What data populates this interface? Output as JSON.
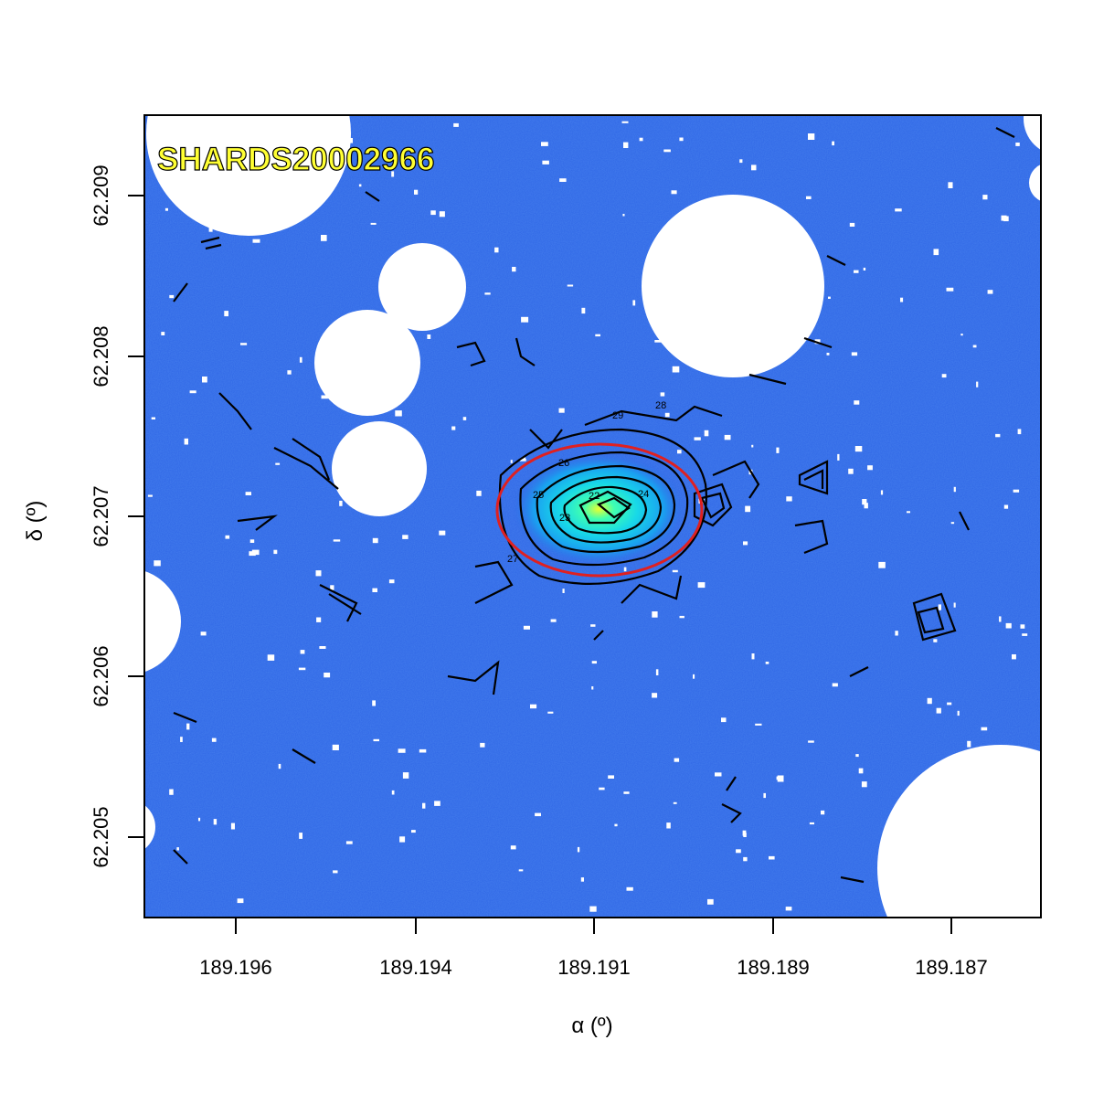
{
  "figure": {
    "object_id": "SHARDS20002966",
    "label_color": "#ffff33",
    "background_color": "#2f66e6",
    "ellipse_color": "#e02020",
    "xlabel": "α (º)",
    "ylabel": "δ (º)",
    "xticks": [
      "189.196",
      "189.194",
      "189.191",
      "189.189",
      "189.187"
    ],
    "yticks": [
      "62.209",
      "62.208",
      "62.207",
      "62.206",
      "62.205"
    ],
    "contour_labels": [
      "22",
      "23",
      "24",
      "25",
      "26",
      "27",
      "28",
      "29"
    ]
  }
}
